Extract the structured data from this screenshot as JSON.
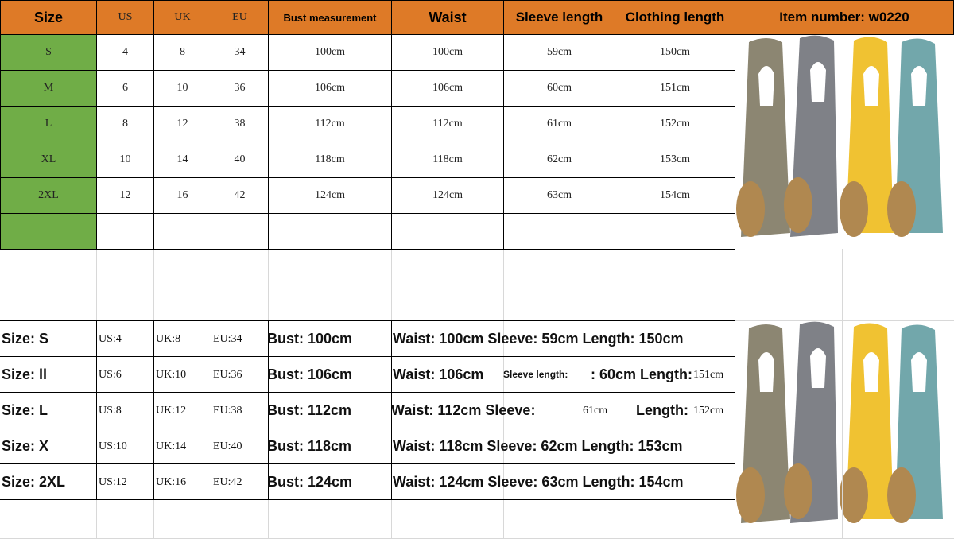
{
  "header": {
    "columns": [
      "Size",
      "US",
      "UK",
      "EU",
      "Bust measurement",
      "Waist",
      "Sleeve length",
      "Clothing length"
    ],
    "item_number": "Item number: w0220"
  },
  "table": {
    "rows": [
      [
        "S",
        "4",
        "8",
        "34",
        "100cm",
        "100cm",
        "59cm",
        "150cm"
      ],
      [
        "M",
        "6",
        "10",
        "36",
        "106cm",
        "106cm",
        "60cm",
        "151cm"
      ],
      [
        "L",
        "8",
        "12",
        "38",
        "112cm",
        "112cm",
        "61cm",
        "152cm"
      ],
      [
        "XL",
        "10",
        "14",
        "40",
        "118cm",
        "118cm",
        "62cm",
        "153cm"
      ],
      [
        "2XL",
        "12",
        "16",
        "42",
        "124cm",
        "124cm",
        "63cm",
        "154cm"
      ]
    ]
  },
  "summary": {
    "rows": [
      [
        "Size: S",
        "US:4",
        "UK:8",
        "EU:34",
        "Bust: 100cm",
        "Waist: 100cm Sleeve: 59cm Length: 150cm"
      ],
      [
        "Size: ll",
        "US:6",
        "UK:10",
        "EU:36",
        "Bust: 106cm",
        "Waist: 106cm",
        "Sleeve length:",
        ": 60cm Length:",
        "151cm"
      ],
      [
        "Size: L",
        "US:8",
        "UK:12",
        "EU:38",
        "Bust: 112cm",
        "Waist: 112cm Sleeve:",
        "61cm",
        "Length:",
        "152cm"
      ],
      [
        "Size: X",
        "US:10",
        "UK:14",
        "EU:40",
        "Bust: 118cm",
        "Waist: 118cm Sleeve: 62cm Length: 153cm"
      ],
      [
        "Size: 2XL",
        "US:12",
        "UK:16",
        "EU:42",
        "Bust: 124cm",
        "Waist: 124cm Sleeve: 63cm Length: 154cm"
      ]
    ]
  }
}
